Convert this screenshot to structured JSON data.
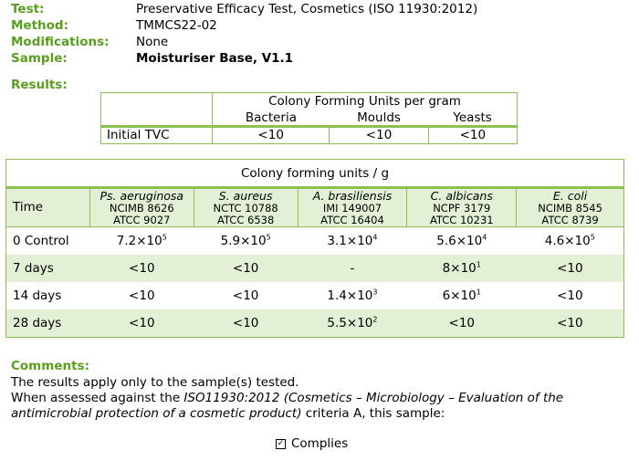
{
  "meta": {
    "test_label": "Test:",
    "test_value": "Preservative Efficacy Test, Cosmetics (ISO 11930:2012)",
    "method_label": "Method:",
    "method_value": "TMMCS22-02",
    "modifications_label": "Modifications:",
    "modifications_value": "None",
    "sample_label": "Sample:",
    "sample_value": "Moisturiser Base, V1.1"
  },
  "results_label": "Results:",
  "results_table": {
    "title": "Colony Forming Units per gram",
    "columns": [
      "Bacteria",
      "Moulds",
      "Yeasts"
    ],
    "row_label": "Initial TVC",
    "values": [
      "<10",
      "<10",
      "<10"
    ]
  },
  "cfu_table": {
    "title": "Colony forming units / g",
    "time_header": "Time",
    "organisms": [
      {
        "name": "Ps. aeruginosa",
        "ref1": "NCIMB 8626",
        "ref2": "ATCC 9027"
      },
      {
        "name": "S. aureus",
        "ref1": "NCTC 10788",
        "ref2": "ATCC 6538"
      },
      {
        "name": "A. brasiliensis",
        "ref1": "IMI 149007",
        "ref2": "ATCC 16404"
      },
      {
        "name": "C. albicans",
        "ref1": "NCPF 3179",
        "ref2": "ATCC 10231"
      },
      {
        "name": "E. coli",
        "ref1": "NCIMB 8545",
        "ref2": "ATCC 8739"
      }
    ],
    "rows": [
      {
        "time": "0 Control",
        "values": [
          {
            "base": "7.2×10",
            "exp": "5"
          },
          {
            "base": "5.9×10",
            "exp": "5"
          },
          {
            "base": "3.1×10",
            "exp": "4"
          },
          {
            "base": "5.6×10",
            "exp": "4"
          },
          {
            "base": "4.6×10",
            "exp": "5"
          }
        ]
      },
      {
        "time": "7 days",
        "values": [
          {
            "base": "<10",
            "exp": ""
          },
          {
            "base": "<10",
            "exp": ""
          },
          {
            "base": "-",
            "exp": ""
          },
          {
            "base": "8×10",
            "exp": "1"
          },
          {
            "base": "<10",
            "exp": ""
          }
        ]
      },
      {
        "time": "14 days",
        "values": [
          {
            "base": "<10",
            "exp": ""
          },
          {
            "base": "<10",
            "exp": ""
          },
          {
            "base": "1.4×10",
            "exp": "3"
          },
          {
            "base": "6×10",
            "exp": "1"
          },
          {
            "base": "<10",
            "exp": ""
          }
        ]
      },
      {
        "time": "28 days",
        "values": [
          {
            "base": "<10",
            "exp": ""
          },
          {
            "base": "<10",
            "exp": ""
          },
          {
            "base": "5.5×10",
            "exp": "2"
          },
          {
            "base": "<10",
            "exp": ""
          },
          {
            "base": "<10",
            "exp": ""
          }
        ]
      }
    ]
  },
  "comments": {
    "label": "Comments:",
    "line1": "The results apply only to the sample(s) tested.",
    "line2_pre": "When assessed against the ",
    "line2_italic": "ISO11930:2012 (Cosmetics – Microbiology – Evaluation of the antimicrobial protection of a cosmetic product)",
    "line2_post": " criteria A, this sample:"
  },
  "complies": {
    "label": "Complies",
    "checked": true
  }
}
